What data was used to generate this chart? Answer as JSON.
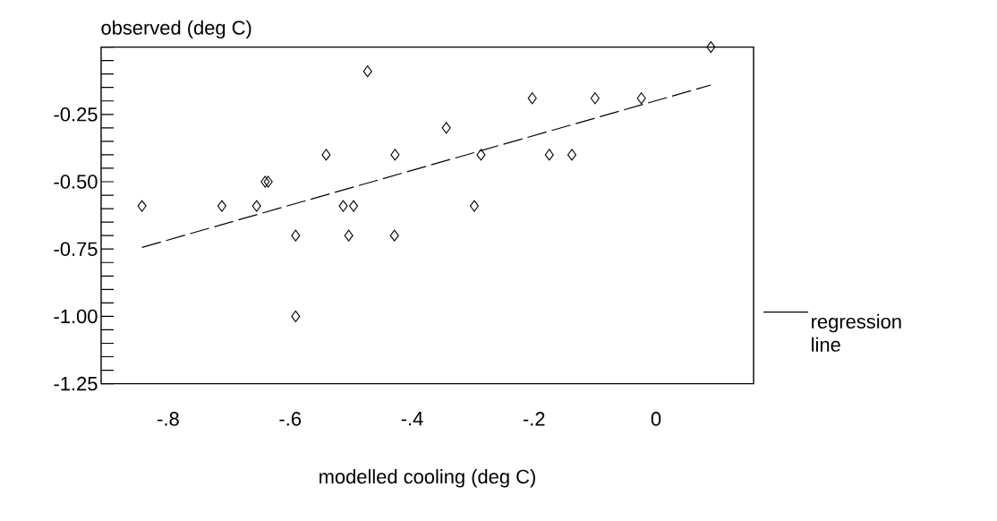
{
  "chart_data": {
    "type": "scatter",
    "xlabel": "modelled cooling (deg C)",
    "ylabel": "observed (deg C)",
    "xlim": [
      -0.91,
      0.16
    ],
    "ylim": [
      -1.25,
      0
    ],
    "xticks": [
      {
        "value": -0.8,
        "label": "-.8"
      },
      {
        "value": -0.6,
        "label": "-.6"
      },
      {
        "value": -0.4,
        "label": "-.4"
      },
      {
        "value": -0.2,
        "label": "-.2"
      },
      0
    ],
    "yticks": [
      {
        "value": -1.25,
        "label": "-1.25"
      },
      {
        "value": -1.2,
        "label": null
      },
      {
        "value": -1.15,
        "label": null
      },
      {
        "value": -1.1,
        "label": null
      },
      {
        "value": -1.05,
        "label": null
      },
      {
        "value": -1.0,
        "label": "-1.00"
      },
      {
        "value": -0.95,
        "label": null
      },
      {
        "value": -0.9,
        "label": null
      },
      {
        "value": -0.85,
        "label": null
      },
      {
        "value": -0.8,
        "label": null
      },
      {
        "value": -0.75,
        "label": "-0.75"
      },
      {
        "value": -0.7,
        "label": null
      },
      {
        "value": -0.65,
        "label": null
      },
      {
        "value": -0.6,
        "label": null
      },
      {
        "value": -0.55,
        "label": null
      },
      {
        "value": -0.5,
        "label": "-0.50"
      },
      {
        "value": -0.45,
        "label": null
      },
      {
        "value": -0.4,
        "label": null
      },
      {
        "value": -0.35,
        "label": null
      },
      {
        "value": -0.3,
        "label": null
      },
      {
        "value": -0.25,
        "label": "-0.25"
      },
      {
        "value": -0.2,
        "label": null
      },
      {
        "value": -0.15,
        "label": null
      },
      {
        "value": -0.1,
        "label": null
      },
      {
        "value": -0.05,
        "label": null
      },
      {
        "value": 0,
        "label": null
      }
    ],
    "legend": "bottom right",
    "series": [
      {
        "type": "scatter",
        "marker": "diamond",
        "color": "#000000",
        "x": [
          -0.843,
          -0.712,
          -0.655,
          -0.641,
          -0.636,
          -0.591,
          -0.591,
          -0.541,
          -0.513,
          -0.496,
          -0.504,
          -0.473,
          -0.428,
          -0.429,
          -0.344,
          -0.287,
          -0.298,
          -0.203,
          -0.175,
          -0.138,
          -0.1,
          -0.024,
          0.09
        ],
        "values": [
          -0.59,
          -0.59,
          -0.59,
          -0.5,
          -0.5,
          -0.7,
          -1.0,
          -0.4,
          -0.59,
          -0.59,
          -0.7,
          -0.09,
          -0.4,
          -0.7,
          -0.3,
          -0.4,
          -0.59,
          -0.19,
          -0.4,
          -0.4,
          -0.19,
          -0.19,
          0.0
        ]
      },
      {
        "type": "line",
        "name": "regression line",
        "color": "#000000",
        "line_style": "dashed",
        "x": [
          -0.843,
          0.09
        ],
        "values": [
          -0.744,
          -0.141
        ]
      }
    ]
  }
}
